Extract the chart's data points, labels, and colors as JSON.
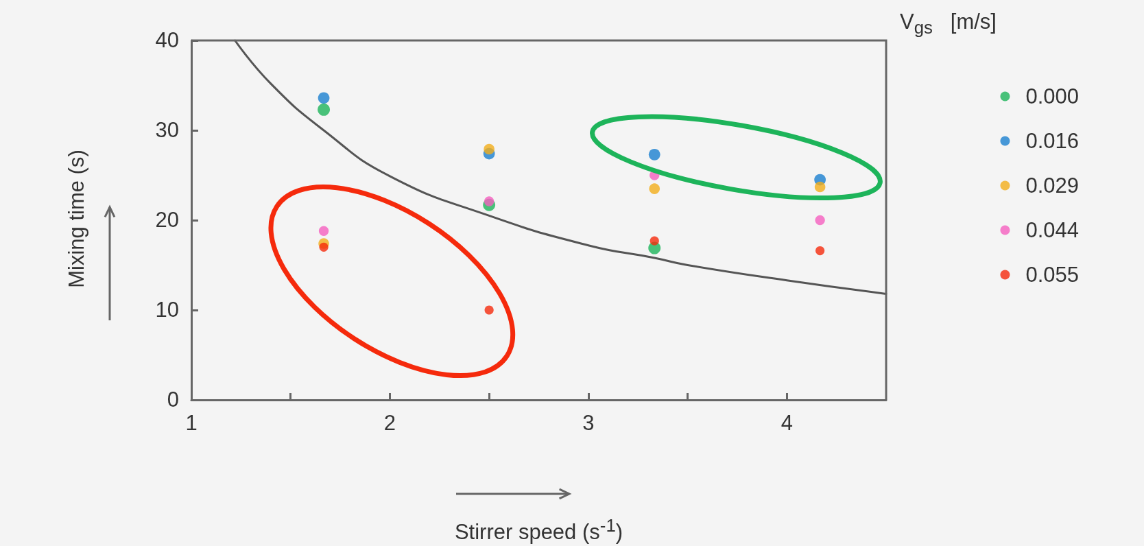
{
  "chart_data": {
    "type": "scatter",
    "xlabel": "Stirrer speed (s$^{-1}$)",
    "ylabel": "Mixing time (s)",
    "legend_title": "V$_{gs}$   [m/s]",
    "x": [
      1.667,
      2.5,
      3.333,
      4.167
    ],
    "series": [
      {
        "name": "0.000",
        "color": "#1db45a",
        "values": [
          32.3,
          21.7,
          16.9,
          null
        ]
      },
      {
        "name": "0.016",
        "color": "#1a7fd0",
        "values": [
          33.6,
          27.4,
          27.3,
          24.5
        ]
      },
      {
        "name": "0.029",
        "color": "#f2ae1a",
        "values": [
          17.4,
          27.9,
          23.5,
          23.7
        ]
      },
      {
        "name": "0.044",
        "color": "#f55fbf",
        "values": [
          18.8,
          22.1,
          25.0,
          20.0
        ]
      },
      {
        "name": "0.055",
        "color": "#f52a0c",
        "values": [
          17.0,
          10.0,
          17.7,
          16.6
        ]
      },
      {
        "type": "line",
        "color": "#555555",
        "marker": "none",
        "x": [
          1.22,
          1.4,
          1.667,
          2,
          2.5,
          3,
          3.333,
          3.5,
          4,
          4.5
        ],
        "values": [
          40,
          35.2,
          30,
          24.9,
          20.5,
          17.2,
          15.8,
          15.0,
          13.3,
          11.8
        ]
      }
    ],
    "xlim": [
      1,
      4.5
    ],
    "xticks": [
      1,
      {
        "value": 1.5,
        "label": null
      },
      2,
      {
        "value": 2.5,
        "label": null
      },
      3,
      {
        "value": 3.5,
        "label": null
      },
      4
    ],
    "ylim": [
      0,
      40
    ],
    "yticks": [
      0,
      10,
      20,
      30,
      40
    ],
    "grid": false,
    "legend": "right",
    "marker": "circle"
  }
}
